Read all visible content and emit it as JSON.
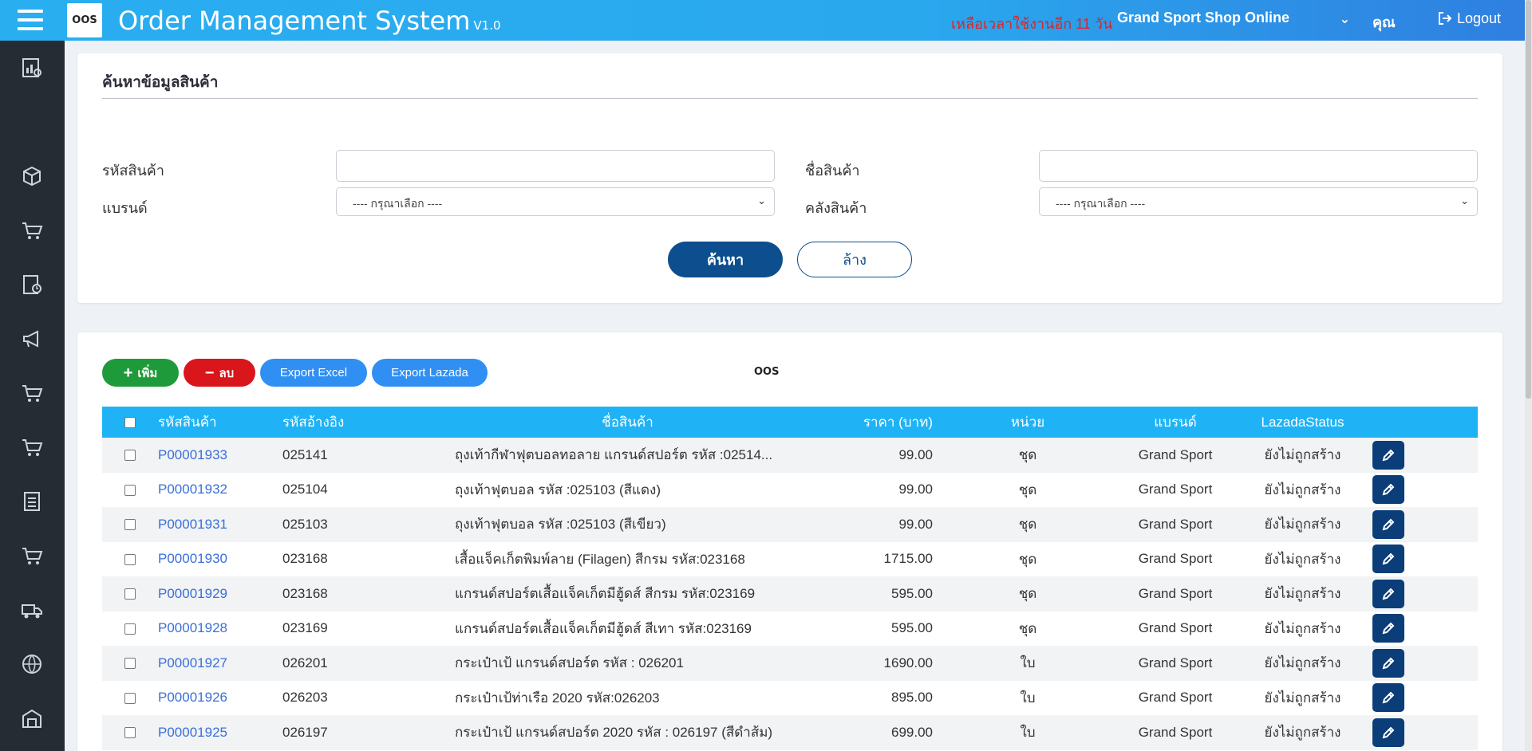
{
  "header": {
    "logo_text": "OOS",
    "title": "Order Management System",
    "version": "V1.0",
    "remaining_time": "เหลือเวลาใช้งานอีก 11 วัน",
    "shop_name": "Grand Sport Shop Online",
    "user_label": "คุณ",
    "logout_label": "Logout"
  },
  "sidebar": {
    "icons": [
      "dashboard-icon",
      "box-icon",
      "cart-icon",
      "report-icon",
      "megaphone-icon",
      "cart-icon",
      "cart-icon",
      "checklist-icon",
      "cart-icon",
      "truck-icon",
      "globe-icon",
      "warehouse-icon"
    ]
  },
  "search": {
    "title": "ค้นหาข้อมูลสินค้า",
    "product_code_label": "รหัสสินค้า",
    "product_code_value": "",
    "product_name_label": "ชื่อสินค้า",
    "product_name_value": "",
    "brand_label": "แบรนด์",
    "brand_selected": "---- กรุณาเลือก ----",
    "warehouse_label": "คลังสินค้า",
    "warehouse_selected": "---- กรุณาเลือก ----",
    "search_button": "ค้นหา",
    "clear_button": "ล้าง"
  },
  "toolbar": {
    "add_label": "เพิ่ม",
    "delete_label": "ลบ",
    "export_excel_label": "Export Excel",
    "export_lazada_label": "Export Lazada",
    "logo_text": "OOS"
  },
  "table": {
    "headers": {
      "code": "รหัสสินค้า",
      "ref": "รหัสอ้างอิง",
      "name": "ชื่อสินค้า",
      "price": "ราคา (บาท)",
      "unit": "หน่วย",
      "brand": "แบรนด์",
      "lazada_status": "LazadaStatus"
    },
    "rows": [
      {
        "code": "P00001933",
        "ref": "025141",
        "name": "ถุงเท้ากีฬาฟุตบอลทอลาย แกรนด์สปอร์ต รหัส :02514...",
        "price": "99.00",
        "unit": "ชุด",
        "brand": "Grand Sport",
        "status": "ยังไม่ถูกสร้าง"
      },
      {
        "code": "P00001932",
        "ref": "025104",
        "name": "ถุงเท้าฟุตบอล รหัส :025103 (สีแดง)",
        "price": "99.00",
        "unit": "ชุด",
        "brand": "Grand Sport",
        "status": "ยังไม่ถูกสร้าง"
      },
      {
        "code": "P00001931",
        "ref": "025103",
        "name": "ถุงเท้าฟุตบอล รหัส :025103 (สีเขียว)",
        "price": "99.00",
        "unit": "ชุด",
        "brand": "Grand Sport",
        "status": "ยังไม่ถูกสร้าง"
      },
      {
        "code": "P00001930",
        "ref": "023168",
        "name": "เสื้อแจ็คเก็ตพิมพ์ลาย (Filagen) สีกรม รหัส:023168",
        "price": "1715.00",
        "unit": "ชุด",
        "brand": "Grand Sport",
        "status": "ยังไม่ถูกสร้าง"
      },
      {
        "code": "P00001929",
        "ref": "023168",
        "name": "แกรนด์สปอร์ตเสื้อแจ็คเก็ตมีฮู้ดส์ สีกรม รหัส:023169",
        "price": "595.00",
        "unit": "ชุด",
        "brand": "Grand Sport",
        "status": "ยังไม่ถูกสร้าง"
      },
      {
        "code": "P00001928",
        "ref": "023169",
        "name": "แกรนด์สปอร์ตเสื้อแจ็คเก็ตมีฮู้ดส์ สีเทา รหัส:023169",
        "price": "595.00",
        "unit": "ชุด",
        "brand": "Grand Sport",
        "status": "ยังไม่ถูกสร้าง"
      },
      {
        "code": "P00001927",
        "ref": "026201",
        "name": "กระเป๋าเป้ แกรนด์สปอร์ต รหัส : 026201",
        "price": "1690.00",
        "unit": "ใบ",
        "brand": "Grand Sport",
        "status": "ยังไม่ถูกสร้าง"
      },
      {
        "code": "P00001926",
        "ref": "026203",
        "name": "กระเป๋าเป้ท่าเรือ 2020 รหัส:026203",
        "price": "895.00",
        "unit": "ใบ",
        "brand": "Grand Sport",
        "status": "ยังไม่ถูกสร้าง"
      },
      {
        "code": "P00001925",
        "ref": "026197",
        "name": "กระเป๋าเป้ แกรนด์สปอร์ต 2020 รหัส : 026197 (สีดำส้ม)",
        "price": "699.00",
        "unit": "ใบ",
        "brand": "Grand Sport",
        "status": "ยังไม่ถูกสร้าง"
      }
    ]
  },
  "colors": {
    "header_blue": "#29aef0",
    "sidebar_dark": "#262c33",
    "primary_navy": "#0d4e8e",
    "table_header": "#1fb3f5",
    "link_blue": "#3a6fd8",
    "add_green": "#1f9a3a",
    "delete_red": "#d9161b",
    "export_blue": "#2f8ff3",
    "warning_red": "#d8262a"
  }
}
